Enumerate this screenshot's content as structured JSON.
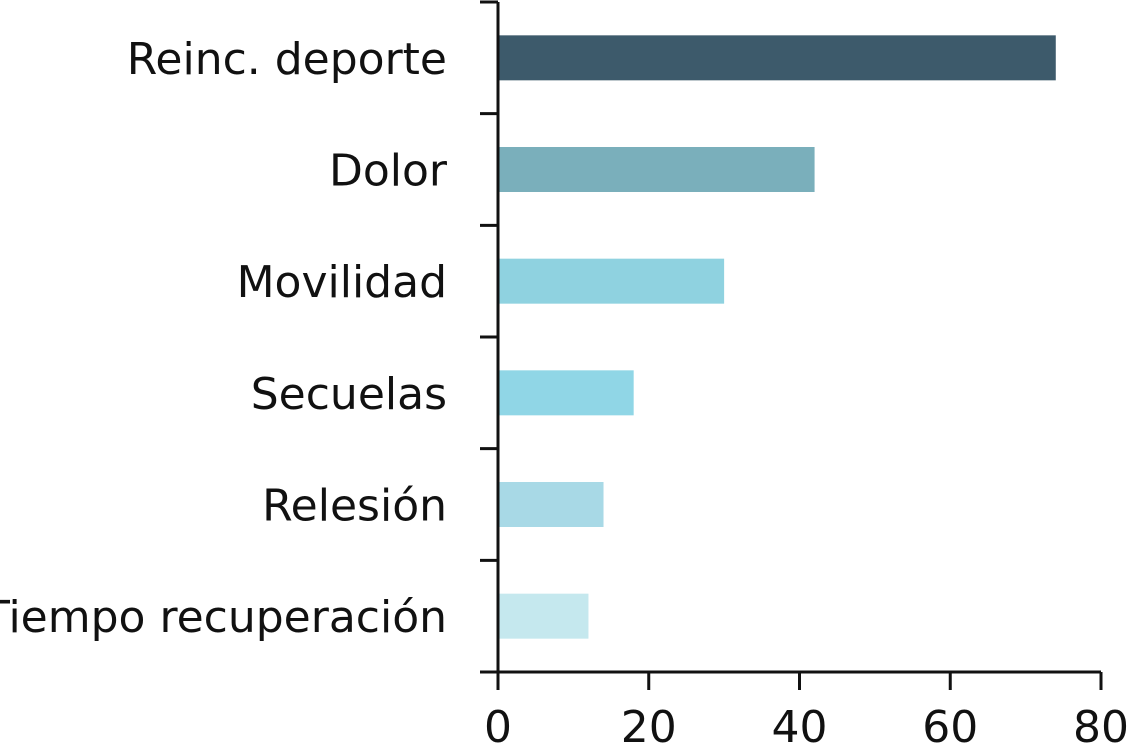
{
  "chart_data": {
    "type": "bar",
    "orientation": "horizontal",
    "categories": [
      "Reinc. deporte",
      "Dolor",
      "Movilidad",
      "Secuelas",
      "Relesión",
      "Tiempo recuperación"
    ],
    "values": [
      74,
      42,
      30,
      18,
      14,
      12
    ],
    "colors": [
      "#3d5a6b",
      "#7aafbb",
      "#8fd2e0",
      "#90d6e6",
      "#a8d9e6",
      "#c5e8ee"
    ],
    "xlim": [
      0,
      80
    ],
    "xticks": [
      0,
      20,
      40,
      60,
      80
    ],
    "title": "",
    "xlabel": "",
    "ylabel": "",
    "grid": false,
    "legend": "none"
  }
}
